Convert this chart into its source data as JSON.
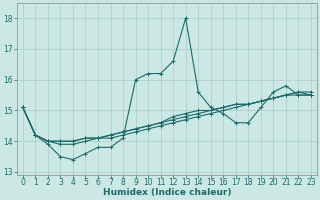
{
  "xlabel": "Humidex (Indice chaleur)",
  "ylabel": "",
  "bg_color": "#cce8e4",
  "grid_color": "#aaccca",
  "line_color": "#1a6b6b",
  "xlim": [
    -0.5,
    23.5
  ],
  "ylim": [
    12.9,
    18.5
  ],
  "yticks": [
    13,
    14,
    15,
    16,
    17,
    18
  ],
  "xticks": [
    0,
    1,
    2,
    3,
    4,
    5,
    6,
    7,
    8,
    9,
    10,
    11,
    12,
    13,
    14,
    15,
    16,
    17,
    18,
    19,
    20,
    21,
    22,
    23
  ],
  "xlabels": [
    "0",
    "1",
    "2",
    "3",
    "4",
    "5",
    "6",
    "7",
    "8",
    "9",
    "10",
    "11",
    "12",
    "13",
    "14",
    "15",
    "16",
    "17",
    "18",
    "19",
    "20",
    "21",
    "22",
    "23"
  ],
  "series": [
    [
      15.1,
      14.2,
      13.9,
      13.5,
      13.4,
      13.6,
      13.8,
      13.8,
      14.1,
      16.0,
      16.2,
      16.2,
      16.6,
      18.0,
      15.6,
      15.1,
      14.9,
      14.6,
      14.6,
      15.1,
      15.6,
      15.8,
      15.5,
      15.5
    ],
    [
      15.1,
      14.2,
      14.0,
      14.0,
      14.0,
      14.1,
      14.1,
      14.2,
      14.3,
      14.4,
      14.5,
      14.6,
      14.7,
      14.8,
      14.9,
      15.0,
      15.1,
      15.2,
      15.2,
      15.3,
      15.4,
      15.5,
      15.6,
      15.6
    ],
    [
      15.1,
      14.2,
      14.0,
      14.0,
      14.0,
      14.1,
      14.1,
      14.2,
      14.3,
      14.4,
      14.5,
      14.6,
      14.8,
      14.9,
      15.0,
      15.0,
      15.1,
      15.2,
      15.2,
      15.3,
      15.4,
      15.5,
      15.6,
      15.5
    ],
    [
      15.1,
      14.2,
      14.0,
      13.9,
      13.9,
      14.0,
      14.1,
      14.1,
      14.2,
      14.3,
      14.4,
      14.5,
      14.6,
      14.7,
      14.8,
      14.9,
      15.0,
      15.1,
      15.2,
      15.3,
      15.4,
      15.5,
      15.5,
      15.5
    ]
  ],
  "marker": "+",
  "marker_size": 3,
  "linewidth": 0.8,
  "xlabel_fontsize": 6.5,
  "tick_fontsize": 5.5
}
